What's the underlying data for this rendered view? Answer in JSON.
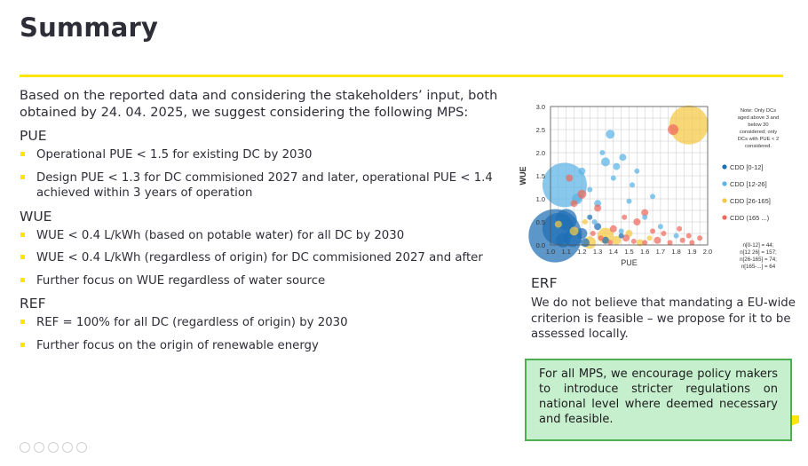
{
  "slide": {
    "title": "Summary",
    "accent_color": "#ffe600",
    "intro": "Based on the reported data and considering the stakeholders’ input, both obtained by 24. 04. 2025, we suggest considering the following MPS:",
    "sections": [
      {
        "heading": "PUE",
        "bullets": [
          "Operational PUE < 1.5 for existing DC by 2030",
          "Design PUE < 1.3 for DC commisioned 2027 and later, operational PUE < 1.4 achieved within 3 years of operation"
        ]
      },
      {
        "heading": "WUE",
        "bullets": [
          "WUE < 0.4 L/kWh (based on potable water) for all DC by 2030",
          "WUE < 0.4 L/kWh (regardless of origin) for DC commisioned 2027 and after",
          "Further focus on WUE regardless of water source"
        ]
      },
      {
        "heading": "REF",
        "bullets": [
          "REF = 100% for all DC (regardless of origin) by 2030",
          "Further focus on the origin of renewable energy"
        ]
      }
    ],
    "erf": {
      "heading": "ERF",
      "text": "We do not believe that mandating a EU-wide criterion is feasible – we propose for it to be assessed locally."
    },
    "callout": {
      "text": "For all MPS, we encourage policy makers to introduce stricter regulations on national level where deemed necessary and feasible.",
      "fill": "#c6efce",
      "border": "#4caf50"
    }
  },
  "chart_data": {
    "type": "scatter",
    "title": "",
    "xlabel": "PUE",
    "ylabel": "WUE",
    "xlim": [
      1.0,
      2.0
    ],
    "ylim": [
      0.0,
      3.0
    ],
    "x_ticks": [
      "1.0",
      "1.1",
      "1.2",
      "1.3",
      "1.4",
      "1.5",
      "1.6",
      "1.7",
      "1.8",
      "1.9",
      "2.0"
    ],
    "y_ticks": [
      "0.0",
      "0.5",
      "1.0",
      "1.5",
      "2.0",
      "2.5",
      "3.0"
    ],
    "grid": true,
    "legend_position": "right",
    "note": "Note: Only DCs aged above 3 and below 30 considered; only DCs with PUE < 2 considered.",
    "counts": [
      "n[0-12] = 44;",
      "n[12 26] = 157;",
      "n[26-165] = 74;",
      "n[165-...] = 64"
    ],
    "series": [
      {
        "name": "CDD [0-12]",
        "color": "#1f6fb5",
        "points": [
          {
            "x": 1.03,
            "y": 0.2,
            "size": 30
          },
          {
            "x": 1.05,
            "y": 0.35,
            "size": 18
          },
          {
            "x": 1.1,
            "y": 0.55,
            "size": 12
          },
          {
            "x": 1.14,
            "y": 0.15,
            "size": 10
          },
          {
            "x": 1.2,
            "y": 0.25,
            "size": 6
          },
          {
            "x": 1.08,
            "y": 0.1,
            "size": 8
          },
          {
            "x": 1.22,
            "y": 0.05,
            "size": 5
          },
          {
            "x": 1.35,
            "y": 0.1,
            "size": 4
          },
          {
            "x": 1.45,
            "y": 0.2,
            "size": 3
          },
          {
            "x": 1.3,
            "y": 0.4,
            "size": 4
          },
          {
            "x": 1.25,
            "y": 0.6,
            "size": 3
          }
        ]
      },
      {
        "name": "CDD [12-26]",
        "color": "#5bb3e6",
        "points": [
          {
            "x": 1.09,
            "y": 1.3,
            "size": 25
          },
          {
            "x": 1.17,
            "y": 1.0,
            "size": 6
          },
          {
            "x": 1.2,
            "y": 1.6,
            "size": 4
          },
          {
            "x": 1.35,
            "y": 1.8,
            "size": 5
          },
          {
            "x": 1.38,
            "y": 2.4,
            "size": 5
          },
          {
            "x": 1.42,
            "y": 1.7,
            "size": 4
          },
          {
            "x": 1.46,
            "y": 1.9,
            "size": 4
          },
          {
            "x": 1.4,
            "y": 1.45,
            "size": 3
          },
          {
            "x": 1.52,
            "y": 1.3,
            "size": 3
          },
          {
            "x": 1.55,
            "y": 1.6,
            "size": 3
          },
          {
            "x": 1.3,
            "y": 0.9,
            "size": 4
          },
          {
            "x": 1.25,
            "y": 1.2,
            "size": 3
          },
          {
            "x": 1.6,
            "y": 0.6,
            "size": 3
          },
          {
            "x": 1.5,
            "y": 0.95,
            "size": 3
          },
          {
            "x": 1.45,
            "y": 0.3,
            "size": 3
          },
          {
            "x": 1.28,
            "y": 0.5,
            "size": 3
          },
          {
            "x": 1.33,
            "y": 2.0,
            "size": 3
          },
          {
            "x": 1.65,
            "y": 1.05,
            "size": 3
          },
          {
            "x": 1.7,
            "y": 0.4,
            "size": 3
          },
          {
            "x": 1.8,
            "y": 0.2,
            "size": 3
          }
        ]
      },
      {
        "name": "CDD [26-165]",
        "color": "#f5c842",
        "points": [
          {
            "x": 1.88,
            "y": 2.6,
            "size": 22
          },
          {
            "x": 1.35,
            "y": 0.2,
            "size": 9
          },
          {
            "x": 1.25,
            "y": 0.05,
            "size": 7
          },
          {
            "x": 1.42,
            "y": 0.1,
            "size": 5
          },
          {
            "x": 1.5,
            "y": 0.25,
            "size": 4
          },
          {
            "x": 1.15,
            "y": 0.3,
            "size": 5
          },
          {
            "x": 1.57,
            "y": 0.05,
            "size": 4
          },
          {
            "x": 1.63,
            "y": 0.15,
            "size": 3
          },
          {
            "x": 1.05,
            "y": 0.45,
            "size": 4
          },
          {
            "x": 1.22,
            "y": 0.5,
            "size": 3
          }
        ]
      },
      {
        "name": "CDD (165 ...)",
        "color": "#ef6a5c",
        "points": [
          {
            "x": 1.78,
            "y": 2.5,
            "size": 6
          },
          {
            "x": 1.2,
            "y": 1.1,
            "size": 5
          },
          {
            "x": 1.15,
            "y": 0.9,
            "size": 4
          },
          {
            "x": 1.3,
            "y": 0.8,
            "size": 4
          },
          {
            "x": 1.12,
            "y": 1.45,
            "size": 4
          },
          {
            "x": 1.6,
            "y": 0.7,
            "size": 4
          },
          {
            "x": 1.55,
            "y": 0.5,
            "size": 4
          },
          {
            "x": 1.4,
            "y": 0.35,
            "size": 4
          },
          {
            "x": 1.48,
            "y": 0.15,
            "size": 4
          },
          {
            "x": 1.68,
            "y": 0.1,
            "size": 4
          },
          {
            "x": 1.72,
            "y": 0.25,
            "size": 3
          },
          {
            "x": 1.76,
            "y": 0.05,
            "size": 3
          },
          {
            "x": 1.84,
            "y": 0.1,
            "size": 3
          },
          {
            "x": 1.9,
            "y": 0.05,
            "size": 3
          },
          {
            "x": 1.95,
            "y": 0.15,
            "size": 3
          },
          {
            "x": 1.6,
            "y": 0.05,
            "size": 3
          },
          {
            "x": 1.53,
            "y": 0.08,
            "size": 3
          },
          {
            "x": 1.38,
            "y": 0.05,
            "size": 3
          },
          {
            "x": 1.65,
            "y": 0.3,
            "size": 3
          },
          {
            "x": 1.82,
            "y": 0.35,
            "size": 3
          },
          {
            "x": 1.88,
            "y": 0.2,
            "size": 3
          },
          {
            "x": 1.32,
            "y": 0.15,
            "size": 3
          },
          {
            "x": 1.27,
            "y": 0.25,
            "size": 3
          },
          {
            "x": 1.47,
            "y": 0.6,
            "size": 3
          }
        ]
      }
    ]
  }
}
